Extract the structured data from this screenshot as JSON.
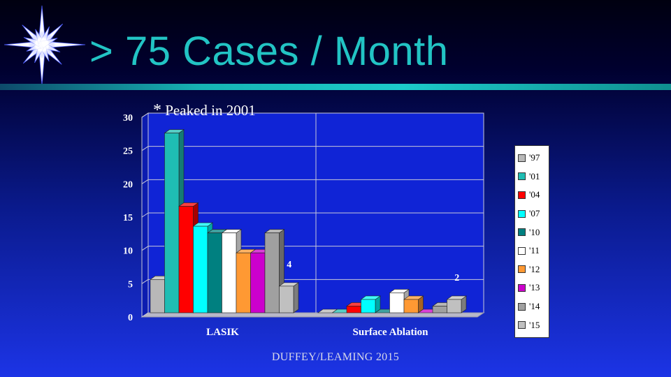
{
  "title": "> 75 Cases / Month",
  "annotation": {
    "star": "*",
    "text": "Peaked in 2001"
  },
  "footer": "DUFFEY/LEAMING 2015",
  "legend_title": "",
  "chart_data": {
    "type": "bar",
    "categories": [
      "LASIK",
      "Surface Ablation"
    ],
    "series": [
      {
        "name": "'97",
        "color": "#b8b8b8",
        "values": [
          5,
          0
        ]
      },
      {
        "name": "'01",
        "color": "#1fbdb3",
        "values": [
          27,
          0
        ]
      },
      {
        "name": "'04",
        "color": "#ff0000",
        "values": [
          16,
          1
        ]
      },
      {
        "name": "'07",
        "color": "#00ffff",
        "values": [
          13,
          2
        ]
      },
      {
        "name": "'10",
        "color": "#008080",
        "values": [
          12,
          0
        ]
      },
      {
        "name": "'11",
        "color": "#ffffff",
        "values": [
          12,
          3
        ]
      },
      {
        "name": "'12",
        "color": "#ff9933",
        "values": [
          9,
          2
        ]
      },
      {
        "name": "'13",
        "color": "#cc00cc",
        "values": [
          9,
          0
        ]
      },
      {
        "name": "'14",
        "color": "#a0a0a0",
        "values": [
          12,
          1
        ]
      },
      {
        "name": "'15",
        "color": "#c0c0c0",
        "values": [
          4,
          2
        ]
      }
    ],
    "data_labels": [
      {
        "category": "LASIK",
        "series": "'15",
        "text": "4"
      },
      {
        "category": "Surface Ablation",
        "series": "'15",
        "text": "2"
      }
    ],
    "ylim": [
      0,
      30
    ],
    "yticks": [
      0,
      5,
      10,
      15,
      20,
      25,
      30
    ],
    "xlabel": "",
    "ylabel": "",
    "grid": true,
    "legend_position": "right",
    "three_d": true
  }
}
